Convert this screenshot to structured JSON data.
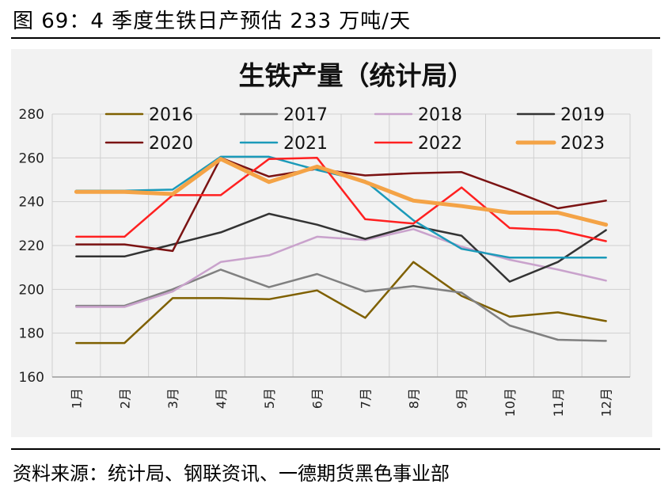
{
  "figure": {
    "caption": "图 69：4 季度生铁日产预估 233 万吨/天",
    "source": "资料来源：统计局、钢联资讯、一德期货黑色事业部"
  },
  "chart_data": {
    "type": "line",
    "title": "生铁产量（统计局）",
    "categories": [
      "1月",
      "2月",
      "3月",
      "4月",
      "5月",
      "6月",
      "7月",
      "8月",
      "9月",
      "10月",
      "11月",
      "12月"
    ],
    "ylim": [
      160,
      280
    ],
    "yticks": [
      160,
      180,
      200,
      220,
      240,
      260,
      280
    ],
    "grid": true,
    "legend_position": "top",
    "series": [
      {
        "name": "2016",
        "color": "#7f6000",
        "width": 2.5,
        "values": [
          175.5,
          175.5,
          196,
          196,
          195.5,
          199.5,
          187,
          212.5,
          197,
          187.5,
          189.5,
          185.5
        ]
      },
      {
        "name": "2017",
        "color": "#808080",
        "width": 2.5,
        "values": [
          192.5,
          192.5,
          200,
          209,
          201,
          207,
          199,
          201.5,
          198.5,
          183.5,
          177,
          176.5
        ]
      },
      {
        "name": "2018",
        "color": "#c9a2cc",
        "width": 2.5,
        "values": [
          192,
          192,
          199,
          212.5,
          215.5,
          224,
          222.5,
          227.5,
          219.5,
          213.5,
          209,
          204
        ]
      },
      {
        "name": "2019",
        "color": "#333333",
        "width": 2.5,
        "values": [
          215,
          215,
          220.5,
          226,
          234.5,
          229.5,
          223,
          229,
          224.5,
          203.5,
          212.5,
          227
        ]
      },
      {
        "name": "2020",
        "color": "#7b1313",
        "width": 2.5,
        "values": [
          220.5,
          220.5,
          217.5,
          260,
          251.5,
          255,
          252,
          253,
          253.5,
          245.5,
          237,
          240.5
        ]
      },
      {
        "name": "2021",
        "color": "#1b9ab9",
        "width": 2.5,
        "values": [
          245,
          245,
          245.5,
          260.5,
          260.5,
          254.5,
          249.5,
          231.5,
          218.5,
          214.5,
          214.5,
          214.5
        ]
      },
      {
        "name": "2022",
        "color": "#ff2020",
        "width": 2.5,
        "values": [
          224,
          224,
          243,
          243,
          259.5,
          260,
          232,
          230,
          246.5,
          228,
          227,
          222
        ]
      },
      {
        "name": "2023",
        "color": "#f4a346",
        "width": 5,
        "values": [
          244.5,
          244.5,
          243.5,
          259.5,
          249,
          256,
          249,
          240.5,
          238,
          235,
          235,
          229.5
        ]
      }
    ]
  }
}
